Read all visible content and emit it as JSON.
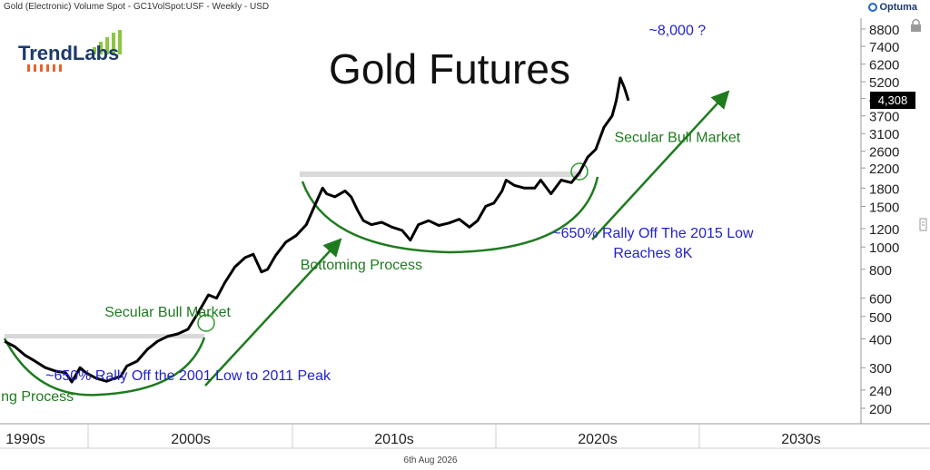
{
  "header": {
    "instrument": "Gold (Electronic) Volume Spot - GC1VolSpot:USF - Weekly - USD",
    "brand": "Optuma"
  },
  "logo": {
    "text": "TrendLabs"
  },
  "footer": {
    "date": "6th Aug 2026"
  },
  "colors": {
    "price": "#000000",
    "annotation_green": "#1e7b1e",
    "annotation_blue": "#2222cc",
    "resistance": "#d9d9d9",
    "logo_text": "#1b3a6b",
    "logo_orange": "#e8632b",
    "logo_green": "#8dc63f"
  },
  "chart_data": {
    "type": "line",
    "title": "Gold Futures",
    "scale": "log",
    "ylim": [
      170,
      10000
    ],
    "y_ticks": [
      200,
      240,
      300,
      400,
      500,
      600,
      800,
      1000,
      1200,
      1500,
      1800,
      2200,
      2600,
      3100,
      3700,
      4400,
      5200,
      6200,
      7400,
      8800
    ],
    "x_tick_labels": [
      "1990s",
      "2000s",
      "2010s",
      "2020s",
      "2030s"
    ],
    "last_price_label": "4,308",
    "series": [
      {
        "x": [
          1996.0,
          1996.5,
          1997.0,
          1997.5,
          1998.0,
          1998.5,
          1999.0,
          1999.3,
          1999.7,
          2000.0,
          2000.5,
          2001.0,
          2001.3,
          2001.7,
          2002.0,
          2002.5,
          2003.0,
          2003.5,
          2004.0,
          2004.5,
          2005.0,
          2005.5,
          2006.0,
          2006.4,
          2006.8,
          2007.3,
          2007.8,
          2008.2,
          2008.6,
          2008.9,
          2009.3,
          2009.8,
          2010.3,
          2010.8,
          2011.2,
          2011.6,
          2011.8,
          2012.2,
          2012.7,
          2013.0,
          2013.3,
          2013.6,
          2014.0,
          2014.5,
          2015.0,
          2015.5,
          2015.9,
          2016.3,
          2016.8,
          2017.3,
          2017.8,
          2018.3,
          2018.8,
          2019.2,
          2019.6,
          2020.0,
          2020.4,
          2020.6,
          2021.0,
          2021.5,
          2022.0,
          2022.3,
          2022.8,
          2023.3,
          2023.8,
          2024.2,
          2024.6,
          2025.0,
          2025.4,
          2025.8,
          2026.0,
          2026.2,
          2026.4,
          2026.6
        ],
        "y": [
          390,
          370,
          340,
          320,
          300,
          290,
          285,
          260,
          300,
          285,
          270,
          262,
          268,
          275,
          305,
          320,
          360,
          390,
          410,
          420,
          440,
          520,
          620,
          600,
          700,
          820,
          900,
          930,
          780,
          800,
          920,
          1050,
          1120,
          1250,
          1500,
          1800,
          1700,
          1650,
          1750,
          1650,
          1450,
          1300,
          1250,
          1280,
          1220,
          1180,
          1070,
          1250,
          1300,
          1240,
          1270,
          1320,
          1220,
          1300,
          1500,
          1550,
          1750,
          1950,
          1850,
          1800,
          1800,
          1950,
          1700,
          1950,
          1900,
          2100,
          2450,
          2650,
          3300,
          3700,
          4300,
          5400,
          4900,
          4308
        ]
      }
    ],
    "annotations": [
      {
        "text": "~8,000 ?",
        "x": 2029.0,
        "y": 8300,
        "color": "blue"
      },
      {
        "text": "Secular Bull Market",
        "x": 2029.0,
        "y": 2850,
        "color": "green"
      },
      {
        "text": "~650% Rally Off The 2015 Low",
        "x": 2027.8,
        "y": 1095,
        "color": "blue"
      },
      {
        "text": "Reaches 8K",
        "x": 2027.8,
        "y": 900,
        "color": "blue"
      },
      {
        "text": "Bottoming Process",
        "x": 2013.5,
        "y": 800,
        "color": "green"
      },
      {
        "text": "Secular Bull Market",
        "x": 2004.0,
        "y": 500,
        "color": "green"
      },
      {
        "text": "~650% Rally Off the 2001 Low to 2011 Peak",
        "x": 2005.0,
        "y": 265,
        "color": "blue"
      },
      {
        "text": "Bottoming Process",
        "x": 1996.4,
        "y": 215,
        "color": "green"
      }
    ]
  }
}
